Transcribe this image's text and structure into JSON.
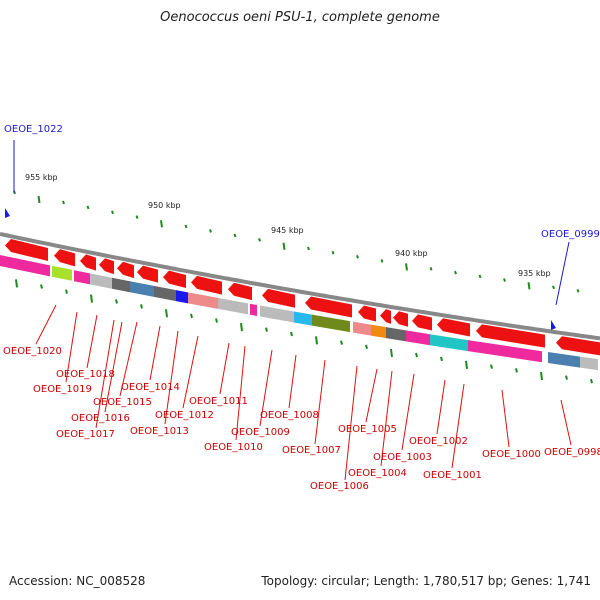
{
  "title": "Oenococcus oeni PSU-1, complete genome",
  "footer": {
    "accession": "Accession: NC_008528",
    "summary": "Topology: circular; Length: 1,780,517 bp; Genes: 1,741"
  },
  "colors": {
    "arrow": "#ee1111",
    "label": "#cc0000",
    "pointer_label": "#1a1acc",
    "backbone": "#888888",
    "tick": "#1d8a1d"
  },
  "scale_labels": [
    "955 kbp",
    "950 kbp",
    "945 kbp",
    "940 kbp",
    "935 kbp"
  ],
  "pointers": [
    "OEOE_1022",
    "OEOE_0999"
  ],
  "gene_labels": [
    "OEOE_1020",
    "OEOE_1019",
    "OEOE_1018",
    "OEOE_1017",
    "OEOE_1016",
    "OEOE_1015",
    "OEOE_1014",
    "OEOE_1013",
    "OEOE_1012",
    "OEOE_1011",
    "OEOE_1010",
    "OEOE_1009",
    "OEOE_1008",
    "OEOE_1007",
    "OEOE_1006",
    "OEOE_1005",
    "OEOE_1004",
    "OEOE_1003",
    "OEOE_1002",
    "OEOE_1001",
    "OEOE_1000",
    "OEOE_0998"
  ]
}
